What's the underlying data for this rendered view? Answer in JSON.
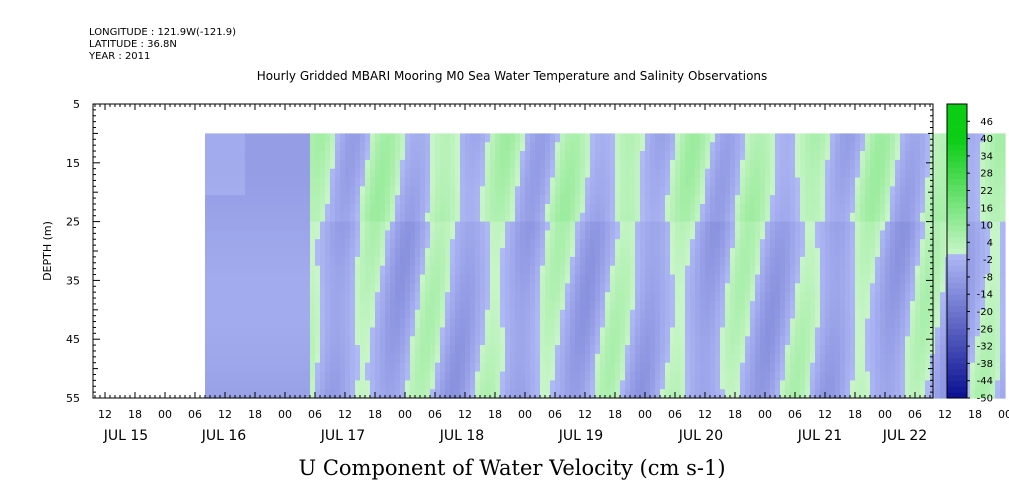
{
  "chart_data": {
    "type": "heatmap",
    "meta_lines": [
      "LONGITUDE : 121.9W(-121.9)",
      "LATITUDE : 36.8N",
      "YEAR : 2011"
    ],
    "title": "Hourly Gridded MBARI Mooring M0 Sea Water Temperature and Salinity Observations",
    "xlabel_big": "U Component of Water Velocity (cm s-1)",
    "ylabel": "DEPTH (m)",
    "y_ticks": [
      "5",
      "15",
      "25",
      "35",
      "45",
      "55"
    ],
    "y_range": [
      5,
      55
    ],
    "x_hour_labels": [
      "12",
      "18",
      "00",
      "06",
      "12",
      "18",
      "00",
      "06",
      "12",
      "18",
      "00",
      "06",
      "12",
      "18",
      "00",
      "06",
      "12",
      "18",
      "00",
      "06",
      "12",
      "18",
      "00",
      "06",
      "12",
      "18",
      "00",
      "06",
      "12",
      "18",
      "00",
      "06"
    ],
    "x_date_labels": [
      "JUL 15",
      "JUL 16",
      "JUL 17",
      "JUL 18",
      "JUL 19",
      "JUL 20",
      "JUL 21",
      "JUL 22"
    ],
    "colorbar_labels": [
      "46",
      "40",
      "34",
      "28",
      "22",
      "16",
      "10",
      "4",
      "-2",
      "-8",
      "-14",
      "-20",
      "-26",
      "-32",
      "-38",
      "-44",
      "-50"
    ],
    "colorbar_range": [
      -50,
      52
    ],
    "data_depth_range": [
      10,
      55
    ],
    "data_time_range_hours": [
      20,
      180
    ],
    "colors": {
      "positive": "#22cc44",
      "negative": "#6677ee",
      "frame": "#000000"
    }
  }
}
